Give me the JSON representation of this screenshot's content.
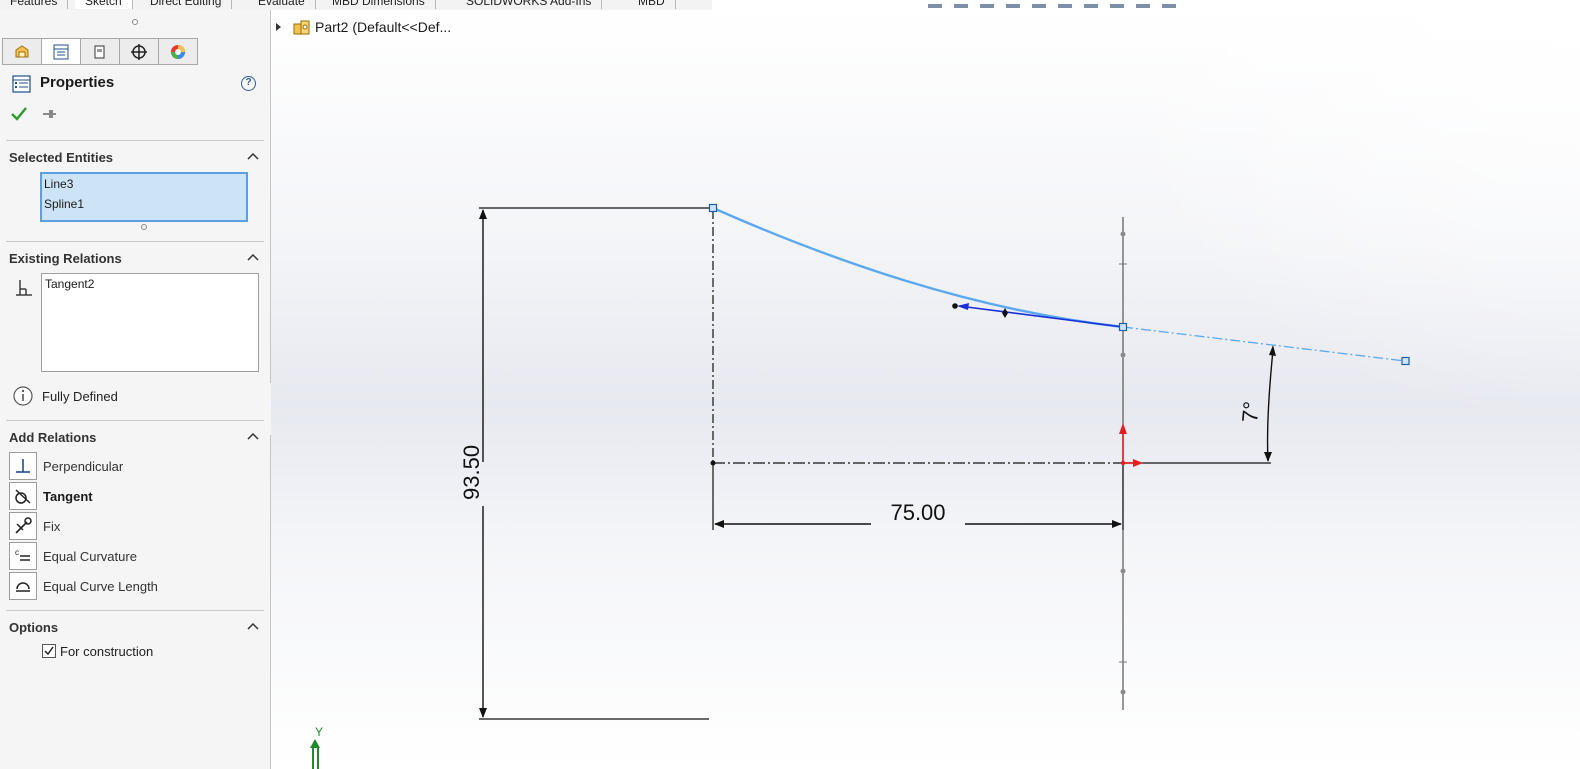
{
  "tabs": [
    "Features",
    "Sketch",
    "Direct Editing",
    "Evaluate",
    "MBD Dimensions",
    "SOLIDWORKS Add-Ins",
    "MBD"
  ],
  "property_manager": {
    "title": "Properties",
    "selected_entities": {
      "header": "Selected Entities",
      "items": [
        "Line3",
        "Spline1"
      ]
    },
    "existing_relations": {
      "header": "Existing Relations",
      "items": [
        "Tangent2"
      ],
      "status": "Fully Defined"
    },
    "add_relations": {
      "header": "Add Relations",
      "items": [
        {
          "label": "Perpendicular",
          "icon": "perpendicular-icon"
        },
        {
          "label": "Tangent",
          "icon": "tangent-icon"
        },
        {
          "label": "Fix",
          "icon": "fix-icon"
        },
        {
          "label": "Equal Curvature",
          "icon": "equal-curvature-icon"
        },
        {
          "label": "Equal Curve Length",
          "icon": "equal-curve-length-icon"
        }
      ]
    },
    "options": {
      "header": "Options",
      "for_construction_label": "For construction",
      "for_construction_checked": true
    }
  },
  "feature_tree": {
    "part_label": "Part2  (Default<<Def..."
  },
  "sketch": {
    "dim_vertical": "93.50",
    "dim_horizontal": "75.00",
    "dim_angle": "7°",
    "axis_label": "Y"
  },
  "colors": {
    "spline": "#5aa9f0",
    "selection_box": "#cde4f7",
    "origin_red": "#e41e1e",
    "triad_green": "#1f8a2a"
  }
}
